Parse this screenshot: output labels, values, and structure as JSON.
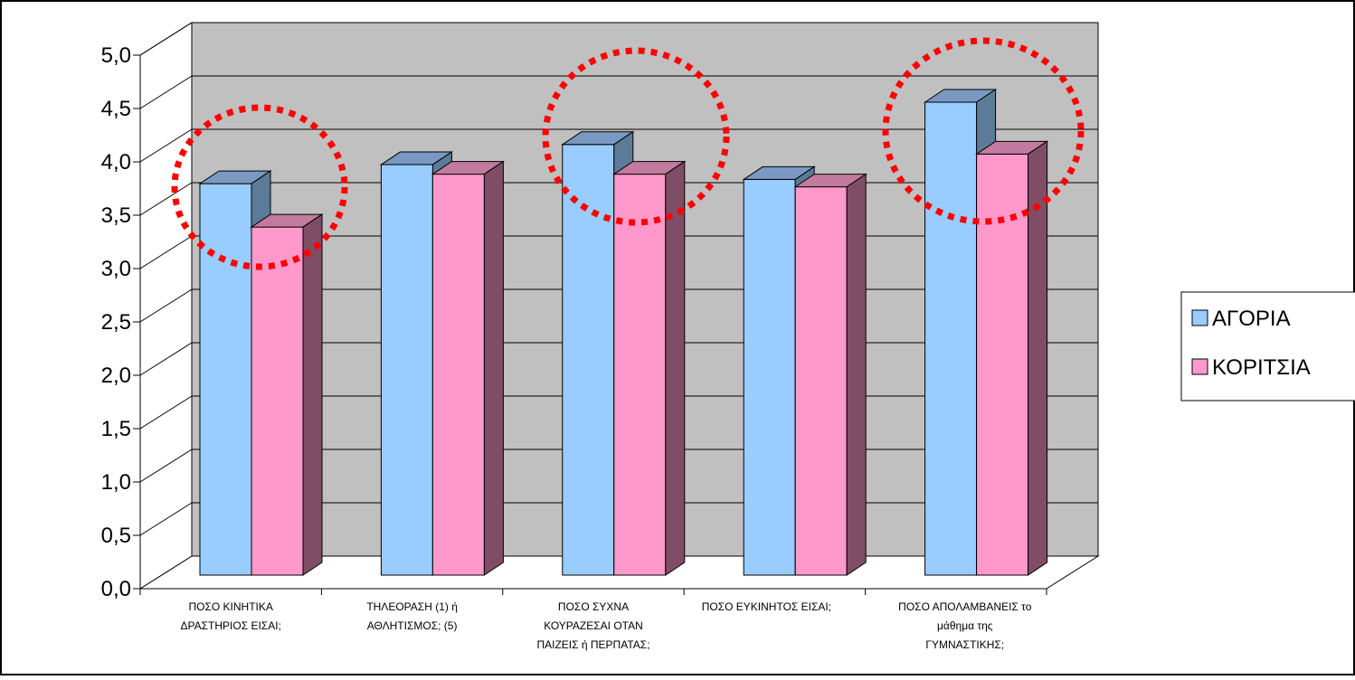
{
  "chart_data": {
    "type": "bar",
    "style": "3d-clustered-column",
    "title": "",
    "xlabel": "",
    "ylabel": "",
    "ylim": [
      0,
      5
    ],
    "ytick_step": 0.5,
    "yticks": [
      "0,0",
      "0,5",
      "1,0",
      "1,5",
      "2,0",
      "2,5",
      "3,0",
      "3,5",
      "4,0",
      "4,5",
      "5,0"
    ],
    "grid": true,
    "legend_position": "right",
    "categories": [
      [
        "ΠΟΣΟ ΚΙΝΗΤΙΚΑ",
        "ΔΡΑΣΤΗΡΙΟΣ ΕΙΣΑΙ;"
      ],
      [
        "ΤΗΛΕΟΡΑΣΗ (1)   ή",
        "ΑΘΛΗΤΙΣΜΟΣ; (5)"
      ],
      [
        "ΠΟΣΟ ΣΥΧΝΑ",
        "ΚΟΥΡΑΖΕΣΑΙ ΟΤΑΝ",
        "ΠΑΙΖΕΙΣ ή ΠΕΡΠΑΤΑΣ;"
      ],
      [
        "ΠΟΣΟ ΕΥΚΙΝΗΤΟΣ ΕΙΣΑΙ;"
      ],
      [
        "ΠΟΣΟ ΑΠΟΛΑΜΒΑΝΕΙΣ το",
        "μάθημα της",
        "ΓΥΜΝΑΣΤΙΚΗΣ;"
      ]
    ],
    "series": [
      {
        "name": "ΑΓΟΡΙΑ",
        "values": [
          3.7,
          3.88,
          4.07,
          3.74,
          4.47
        ],
        "color": "#99ccff",
        "side_color": "#5b7b99",
        "top_color": "#7a99c2"
      },
      {
        "name": "ΚΟΡΙΤΣΙΑ",
        "values": [
          3.29,
          3.79,
          3.79,
          3.67,
          3.98
        ],
        "color": "#ff99cc",
        "side_color": "#804d66",
        "top_color": "#c27a9e"
      }
    ],
    "highlighted_categories": [
      0,
      2,
      4
    ],
    "highlight_color": "#ff0000",
    "wall_color": "#c0c0c0"
  }
}
